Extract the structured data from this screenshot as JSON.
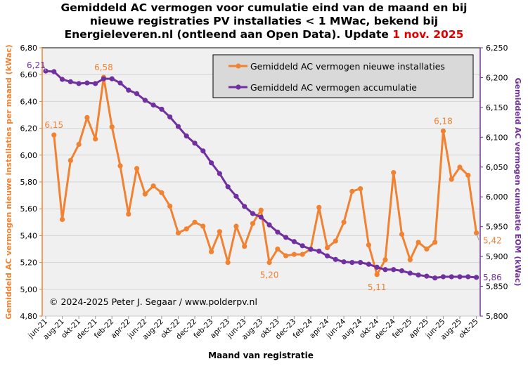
{
  "title": {
    "line1": "Gemiddeld AC vermogen voor cumulatie eind van de maand en bij",
    "line2": "nieuwe registraties PV installaties < 1 MWac, bekend bij",
    "line3": "Energieleveren.nl (ontleend aan Open Data). Update ",
    "update_date": "1 nov. 2025"
  },
  "colors": {
    "orange": "#f08232",
    "purple": "#7030a0",
    "update_date": "#e00000",
    "plot_bg": "#f0f0f0",
    "legend_bg": "#d9d9d9"
  },
  "chart_data": {
    "type": "line",
    "xlabel": "Maand van registratie",
    "ylabel_left": "Gemiddeld AC vermogen nieuwe installaties per maand (kWac)",
    "ylabel_right": "Gemiddeld AC vermogen cumulatie EOM (kWac)",
    "ylim_left": [
      4.8,
      6.8
    ],
    "ylim_right": [
      5800,
      6250
    ],
    "yticks_left": [
      "6,80",
      "6,60",
      "6,40",
      "6,20",
      "6,00",
      "5,80",
      "5,60",
      "5,40",
      "5,20",
      "5,00",
      "4,80"
    ],
    "yticks_right": [
      "6,250",
      "6,200",
      "6,150",
      "6,100",
      "6,050",
      "6,000",
      "5,950",
      "5,900",
      "5,850",
      "5,800"
    ],
    "grid": true,
    "legend_placement": "top-right",
    "categories": [
      "jun-21",
      "jul-21",
      "aug-21",
      "sep-21",
      "okt-21",
      "nov-21",
      "dec-21",
      "jan-22",
      "feb-22",
      "mrt-22",
      "apr-22",
      "mei-22",
      "jun-22",
      "jul-22",
      "aug-22",
      "sep-22",
      "okt-22",
      "nov-22",
      "dec-22",
      "jan-23",
      "feb-23",
      "mrt-23",
      "apr-23",
      "mei-23",
      "jun-23",
      "jul-23",
      "aug-23",
      "sep-23",
      "okt-23",
      "nov-23",
      "dec-23",
      "jan-24",
      "feb-24",
      "mrt-24",
      "apr-24",
      "mei-24",
      "jun-24",
      "jul-24",
      "aug-24",
      "sep-24",
      "okt-24",
      "nov-24",
      "dec-24",
      "jan-25",
      "feb-25",
      "mrt-25",
      "apr-25",
      "mei-25",
      "jun-25",
      "jul-25",
      "aug-25",
      "sep-25",
      "okt-25"
    ],
    "xtick_labels": [
      "jun-21",
      "aug-21",
      "okt-21",
      "dec-21",
      "feb-22",
      "apr-22",
      "jun-22",
      "aug-22",
      "okt-22",
      "dec-22",
      "feb-23",
      "apr-23",
      "jun-23",
      "aug-23",
      "okt-23",
      "dec-23",
      "feb-24",
      "apr-24",
      "jun-24",
      "aug-24",
      "okt-24",
      "dec-24",
      "feb-25",
      "apr-25",
      "jun-25",
      "aug-25",
      "okt-25"
    ],
    "series": [
      {
        "name": "Gemiddeld AC vermogen nieuwe installaties",
        "axis": "left",
        "color": "#f08232",
        "values": [
          null,
          6.15,
          5.52,
          5.96,
          6.08,
          6.28,
          6.12,
          6.58,
          6.21,
          5.92,
          5.56,
          5.9,
          5.71,
          5.77,
          5.72,
          5.62,
          5.42,
          5.45,
          5.5,
          5.47,
          5.28,
          5.43,
          5.2,
          5.47,
          5.32,
          5.49,
          5.59,
          5.2,
          5.3,
          5.25,
          5.26,
          5.26,
          5.3,
          5.61,
          5.31,
          5.36,
          5.5,
          5.73,
          5.75,
          5.33,
          5.11,
          5.22,
          5.87,
          5.41,
          5.22,
          5.35,
          5.3,
          5.35,
          6.18,
          5.82,
          5.91,
          5.85,
          5.42
        ]
      },
      {
        "name": "Gemiddeld AC vermogen accumulatie",
        "axis": "right",
        "color": "#7030a0",
        "values": [
          6211,
          6210,
          6197,
          6193,
          6190,
          6191,
          6190,
          6198,
          6198,
          6191,
          6179,
          6173,
          6162,
          6154,
          6147,
          6134,
          6118,
          6102,
          6090,
          6077,
          6057,
          6039,
          6017,
          6001,
          5984,
          5972,
          5966,
          5953,
          5941,
          5932,
          5925,
          5918,
          5912,
          5909,
          5901,
          5895,
          5891,
          5890,
          5890,
          5887,
          5882,
          5878,
          5878,
          5876,
          5872,
          5869,
          5867,
          5864,
          5866,
          5866,
          5866,
          5866,
          5865
        ]
      }
    ],
    "annotations": [
      {
        "series": 0,
        "category": "jul-21",
        "text": "6,15"
      },
      {
        "series": 0,
        "category": "jan-22",
        "text": "6,58"
      },
      {
        "series": 0,
        "category": "sep-23",
        "text": "5,20"
      },
      {
        "series": 0,
        "category": "okt-24",
        "text": "5,11"
      },
      {
        "series": 0,
        "category": "jun-25",
        "text": "6,18"
      },
      {
        "series": 0,
        "category": "okt-25",
        "text": "5,42"
      },
      {
        "series": 1,
        "category": "jun-21",
        "text": "6,21"
      },
      {
        "series": 1,
        "category": "okt-25",
        "text": "5,86"
      }
    ],
    "copyright": "© 2024-2025  Peter J. Segaar / www.polderpv.nl"
  }
}
